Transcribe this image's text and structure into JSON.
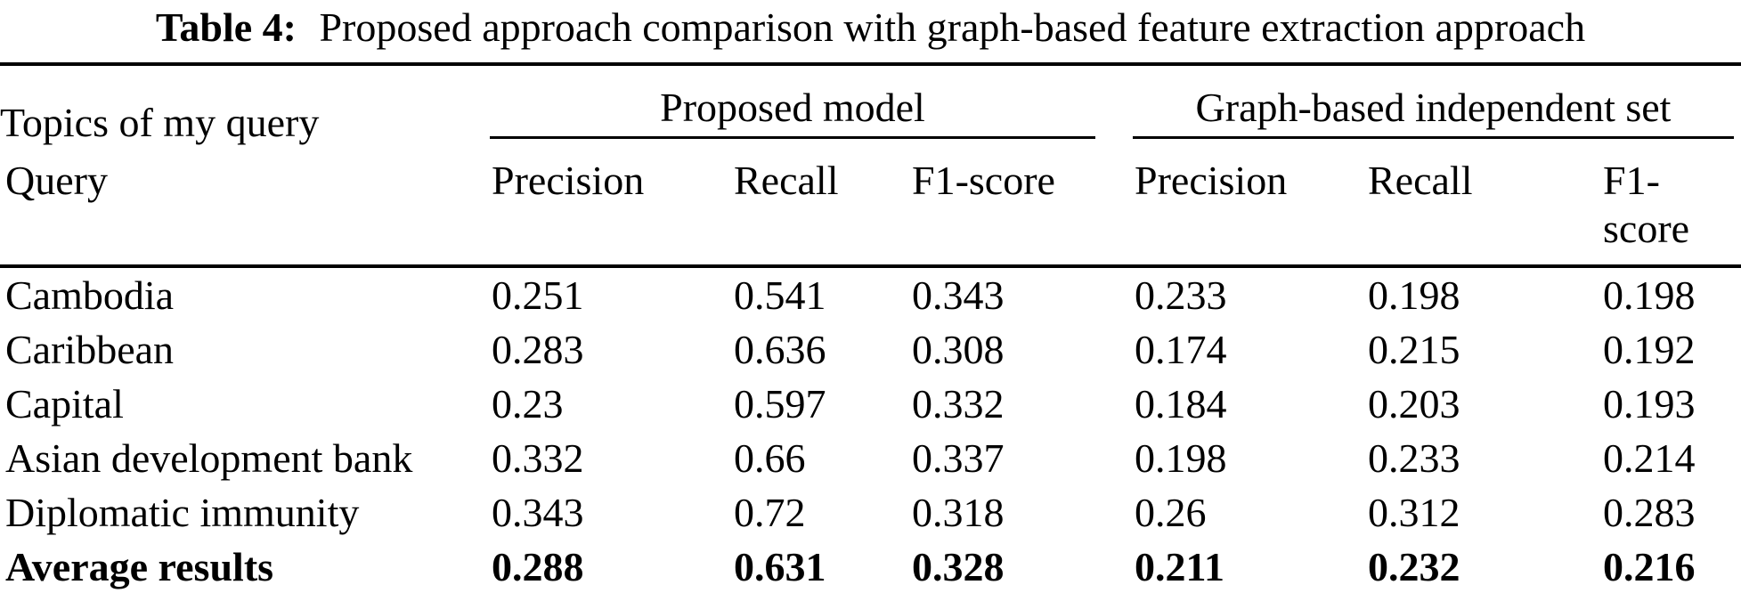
{
  "caption": {
    "label": "Table 4:",
    "text": "Proposed approach comparison with graph-based feature extraction approach"
  },
  "table": {
    "stub": {
      "line1": "Topics of my query",
      "line2": "Query"
    },
    "groups": [
      {
        "label": "Proposed model",
        "columns": [
          "Precision",
          "Recall",
          "F1-score"
        ]
      },
      {
        "label": "Graph-based independent set",
        "columns": [
          "Precision",
          "Recall",
          "F1-score"
        ]
      }
    ],
    "rows": [
      {
        "query": "Cambodia",
        "values": [
          "0.251",
          "0.541",
          "0.343",
          "0.233",
          "0.198",
          "0.198"
        ]
      },
      {
        "query": "Caribbean",
        "values": [
          "0.283",
          "0.636",
          "0.308",
          "0.174",
          "0.215",
          "0.192"
        ]
      },
      {
        "query": "Capital",
        "values": [
          "0.23",
          "0.597",
          "0.332",
          "0.184",
          "0.203",
          "0.193"
        ]
      },
      {
        "query": "Asian development bank",
        "values": [
          "0.332",
          "0.66",
          "0.337",
          "0.198",
          "0.233",
          "0.214"
        ]
      },
      {
        "query": "Diplomatic immunity",
        "values": [
          "0.343",
          "0.72",
          "0.318",
          "0.26",
          "0.312",
          "0.283"
        ]
      }
    ],
    "summary": {
      "query": "Average results",
      "values": [
        "0.288",
        "0.631",
        "0.328",
        "0.211",
        "0.232",
        "0.216"
      ]
    }
  },
  "colors": {
    "text": "#000000",
    "background": "#ffffff",
    "rule": "#000000"
  }
}
